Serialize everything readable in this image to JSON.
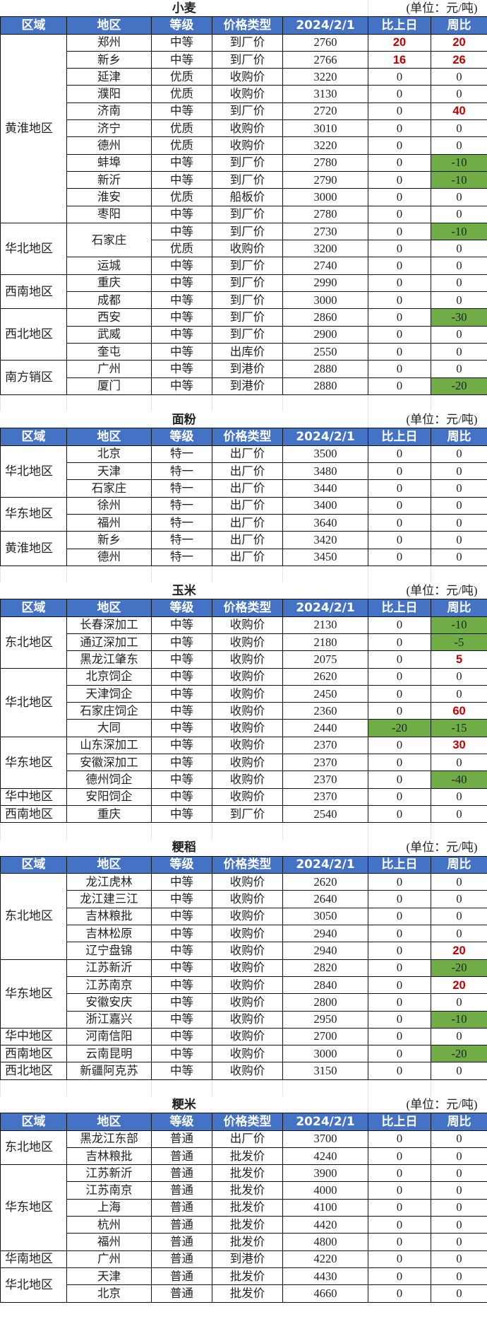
{
  "headers": [
    "区域",
    "地区",
    "等级",
    "价格类型",
    "2024/2/1",
    "比上日",
    "周比"
  ],
  "colors": {
    "header_bg": "#4472C4",
    "up_text": "#C00000",
    "down_bg": "#70AD47"
  },
  "sections": [
    {
      "title": "小麦",
      "unit": "(单位：元/吨)",
      "groups": [
        {
          "region": "黄淮地区",
          "rows": [
            {
              "city": "郑州",
              "grade": "中等",
              "type": "到厂价",
              "price": 2760,
              "dod": 20,
              "wow": 20
            },
            {
              "city": "新乡",
              "grade": "中等",
              "type": "到厂价",
              "price": 2766,
              "dod": 16,
              "wow": 26
            },
            {
              "city": "延津",
              "grade": "优质",
              "type": "收购价",
              "price": 3220,
              "dod": 0,
              "wow": 0
            },
            {
              "city": "濮阳",
              "grade": "优质",
              "type": "收购价",
              "price": 3130,
              "dod": 0,
              "wow": 0
            },
            {
              "city": "济南",
              "grade": "中等",
              "type": "到厂价",
              "price": 2720,
              "dod": 0,
              "wow": 40
            },
            {
              "city": "济宁",
              "grade": "优质",
              "type": "收购价",
              "price": 3010,
              "dod": 0,
              "wow": 0
            },
            {
              "city": "德州",
              "grade": "优质",
              "type": "收购价",
              "price": 3220,
              "dod": 0,
              "wow": 0
            },
            {
              "city": "蚌埠",
              "grade": "中等",
              "type": "到厂价",
              "price": 2780,
              "dod": 0,
              "wow": -10
            },
            {
              "city": "新沂",
              "grade": "中等",
              "type": "到厂价",
              "price": 2790,
              "dod": 0,
              "wow": -10
            },
            {
              "city": "淮安",
              "grade": "优质",
              "type": "船板价",
              "price": 3000,
              "dod": 0,
              "wow": 0
            },
            {
              "city": "枣阳",
              "grade": "中等",
              "type": "到厂价",
              "price": 2780,
              "dod": 0,
              "wow": 0
            }
          ]
        },
        {
          "region": "华北地区",
          "rows": [
            {
              "city": "石家庄",
              "grade": "中等",
              "type": "到厂价",
              "price": 2730,
              "dod": 0,
              "wow": -10
            },
            {
              "city": null,
              "grade": "优质",
              "type": "收购价",
              "price": 3200,
              "dod": 0,
              "wow": 0
            },
            {
              "city": "运城",
              "grade": "中等",
              "type": "到厂价",
              "price": 2740,
              "dod": 0,
              "wow": 0
            }
          ]
        },
        {
          "region": "西南地区",
          "rows": [
            {
              "city": "重庆",
              "grade": "中等",
              "type": "到厂价",
              "price": 2990,
              "dod": 0,
              "wow": 0
            },
            {
              "city": "成都",
              "grade": "中等",
              "type": "到厂价",
              "price": 3000,
              "dod": 0,
              "wow": 0
            }
          ]
        },
        {
          "region": "西北地区",
          "rows": [
            {
              "city": "西安",
              "grade": "中等",
              "type": "到厂价",
              "price": 2860,
              "dod": 0,
              "wow": -30
            },
            {
              "city": "武威",
              "grade": "中等",
              "type": "到厂价",
              "price": 2900,
              "dod": 0,
              "wow": 0
            },
            {
              "city": "奎屯",
              "grade": "中等",
              "type": "出库价",
              "price": 2550,
              "dod": 0,
              "wow": 0
            }
          ]
        },
        {
          "region": "南方销区",
          "rows": [
            {
              "city": "广州",
              "grade": "中等",
              "type": "到港价",
              "price": 2880,
              "dod": 0,
              "wow": 0
            },
            {
              "city": "厦门",
              "grade": "中等",
              "type": "到港价",
              "price": 2880,
              "dod": 0,
              "wow": -20
            }
          ]
        }
      ]
    },
    {
      "title": "面粉",
      "unit": "(单位：元/吨)",
      "groups": [
        {
          "region": "华北地区",
          "rows": [
            {
              "city": "北京",
              "grade": "特一",
              "type": "出厂价",
              "price": 3500,
              "dod": 0,
              "wow": 0
            },
            {
              "city": "天津",
              "grade": "特一",
              "type": "出厂价",
              "price": 3480,
              "dod": 0,
              "wow": 0
            },
            {
              "city": "石家庄",
              "grade": "特一",
              "type": "出厂价",
              "price": 3440,
              "dod": 0,
              "wow": 0
            }
          ]
        },
        {
          "region": "华东地区",
          "rows": [
            {
              "city": "徐州",
              "grade": "特一",
              "type": "出厂价",
              "price": 3400,
              "dod": 0,
              "wow": 0
            },
            {
              "city": "福州",
              "grade": "特一",
              "type": "出厂价",
              "price": 3640,
              "dod": 0,
              "wow": 0
            }
          ]
        },
        {
          "region": "黄淮地区",
          "rows": [
            {
              "city": "新乡",
              "grade": "特一",
              "type": "出厂价",
              "price": 3420,
              "dod": 0,
              "wow": 0
            },
            {
              "city": "德州",
              "grade": "特一",
              "type": "出厂价",
              "price": 3450,
              "dod": 0,
              "wow": 0
            }
          ]
        }
      ]
    },
    {
      "title": "玉米",
      "unit": "(单位：元/吨)",
      "groups": [
        {
          "region": "东北地区",
          "rows": [
            {
              "city": "长春深加工",
              "grade": "中等",
              "type": "收购价",
              "price": 2130,
              "dod": 0,
              "wow": -10
            },
            {
              "city": "通辽深加工",
              "grade": "中等",
              "type": "收购价",
              "price": 2180,
              "dod": 0,
              "wow": -5
            },
            {
              "city": "黑龙江肇东",
              "grade": "中等",
              "type": "收购价",
              "price": 2075,
              "dod": 0,
              "wow": 5
            }
          ]
        },
        {
          "region": "华北地区",
          "rows": [
            {
              "city": "北京饲企",
              "grade": "中等",
              "type": "收购价",
              "price": 2620,
              "dod": 0,
              "wow": 0
            },
            {
              "city": "天津饲企",
              "grade": "中等",
              "type": "收购价",
              "price": 2450,
              "dod": 0,
              "wow": 0
            },
            {
              "city": "石家庄饲企",
              "grade": "中等",
              "type": "收购价",
              "price": 2360,
              "dod": 0,
              "wow": 60
            },
            {
              "city": "大同",
              "grade": "中等",
              "type": "收购价",
              "price": 2440,
              "dod": -20,
              "wow": -15
            }
          ]
        },
        {
          "region": "华东地区",
          "rows": [
            {
              "city": "山东深加工",
              "grade": "中等",
              "type": "收购价",
              "price": 2370,
              "dod": 0,
              "wow": 30
            },
            {
              "city": "安徽深加工",
              "grade": "中等",
              "type": "收购价",
              "price": 2370,
              "dod": 0,
              "wow": 0
            },
            {
              "city": "德州饲企",
              "grade": "中等",
              "type": "收购价",
              "price": 2370,
              "dod": 0,
              "wow": -40
            }
          ]
        },
        {
          "region": "华中地区",
          "rows": [
            {
              "city": "安阳饲企",
              "grade": "中等",
              "type": "收购价",
              "price": 2370,
              "dod": 0,
              "wow": 0
            }
          ]
        },
        {
          "region": "西南地区",
          "rows": [
            {
              "city": "重庆",
              "grade": "中等",
              "type": "到厂价",
              "price": 2540,
              "dod": 0,
              "wow": 0
            }
          ]
        }
      ]
    },
    {
      "title": "粳稻",
      "unit": "(单位：元/吨)",
      "groups": [
        {
          "region": "东北地区",
          "rows": [
            {
              "city": "龙江虎林",
              "grade": "中等",
              "type": "收购价",
              "price": 2620,
              "dod": 0,
              "wow": 0
            },
            {
              "city": "龙江建三江",
              "grade": "中等",
              "type": "收购价",
              "price": 2640,
              "dod": 0,
              "wow": 0
            },
            {
              "city": "吉林粮批",
              "grade": "中等",
              "type": "收购价",
              "price": 3050,
              "dod": 0,
              "wow": 0
            },
            {
              "city": "吉林松原",
              "grade": "中等",
              "type": "收购价",
              "price": 2940,
              "dod": 0,
              "wow": 0
            },
            {
              "city": "辽宁盘锦",
              "grade": "中等",
              "type": "收购价",
              "price": 2940,
              "dod": 0,
              "wow": 20
            }
          ]
        },
        {
          "region": "华东地区",
          "rows": [
            {
              "city": "江苏新沂",
              "grade": "中等",
              "type": "收购价",
              "price": 2820,
              "dod": 0,
              "wow": -20
            },
            {
              "city": "江苏南京",
              "grade": "中等",
              "type": "收购价",
              "price": 2840,
              "dod": 0,
              "wow": 20
            },
            {
              "city": "安徽安庆",
              "grade": "中等",
              "type": "收购价",
              "price": 2800,
              "dod": 0,
              "wow": 0
            },
            {
              "city": "浙江嘉兴",
              "grade": "中等",
              "type": "收购价",
              "price": 2950,
              "dod": 0,
              "wow": -10
            }
          ]
        },
        {
          "region": "华中地区",
          "rows": [
            {
              "city": "河南信阳",
              "grade": "中等",
              "type": "收购价",
              "price": 2700,
              "dod": 0,
              "wow": 0
            }
          ]
        },
        {
          "region": "西南地区",
          "rows": [
            {
              "city": "云南昆明",
              "grade": "中等",
              "type": "收购价",
              "price": 3000,
              "dod": 0,
              "wow": -20
            }
          ]
        },
        {
          "region": "西北地区",
          "rows": [
            {
              "city": "新疆阿克苏",
              "grade": "中等",
              "type": "收购价",
              "price": 3150,
              "dod": 0,
              "wow": 0
            }
          ]
        }
      ]
    },
    {
      "title": "粳米",
      "unit": "(单位：元/吨)",
      "groups": [
        {
          "region": "东北地区",
          "rows": [
            {
              "city": "黑龙江东部",
              "grade": "普通",
              "type": "出厂价",
              "price": 3700,
              "dod": 0,
              "wow": 0
            },
            {
              "city": "吉林粮批",
              "grade": "普通",
              "type": "批发价",
              "price": 4240,
              "dod": 0,
              "wow": 0
            }
          ]
        },
        {
          "region": "华东地区",
          "rows": [
            {
              "city": "江苏新沂",
              "grade": "普通",
              "type": "批发价",
              "price": 3900,
              "dod": 0,
              "wow": 0
            },
            {
              "city": "江苏南京",
              "grade": "普通",
              "type": "批发价",
              "price": 4000,
              "dod": 0,
              "wow": 0
            },
            {
              "city": "上海",
              "grade": "普通",
              "type": "批发价",
              "price": 4100,
              "dod": 0,
              "wow": 0
            },
            {
              "city": "杭州",
              "grade": "普通",
              "type": "批发价",
              "price": 4420,
              "dod": 0,
              "wow": 0
            },
            {
              "city": "福州",
              "grade": "普通",
              "type": "批发价",
              "price": 4800,
              "dod": 0,
              "wow": 0
            }
          ]
        },
        {
          "region": "华南地区",
          "rows": [
            {
              "city": "广州",
              "grade": "普通",
              "type": "到港价",
              "price": 4220,
              "dod": 0,
              "wow": 0
            }
          ]
        },
        {
          "region": "华北地区",
          "rows": [
            {
              "city": "天津",
              "grade": "普通",
              "type": "批发价",
              "price": 4430,
              "dod": 0,
              "wow": 0
            },
            {
              "city": "北京",
              "grade": "普通",
              "type": "批发价",
              "price": 4660,
              "dod": 0,
              "wow": 0
            }
          ]
        }
      ]
    }
  ]
}
